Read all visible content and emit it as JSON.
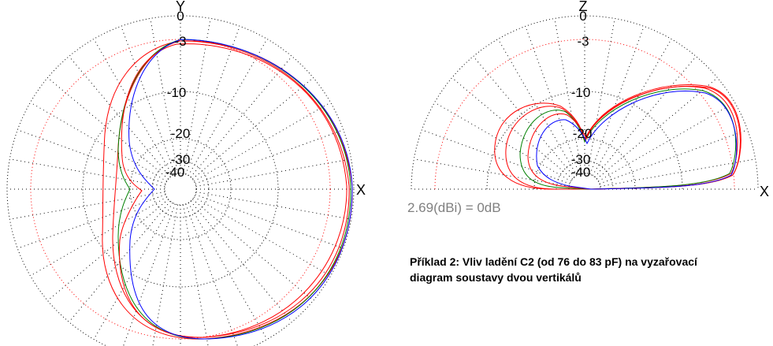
{
  "colors": {
    "grid": "#000000",
    "grid_ref": "#ff0000",
    "series": [
      "#ff0000",
      "#ff0000",
      "#008000",
      "#ff0000",
      "#0000ff"
    ],
    "gain_text": "#808080"
  },
  "chart_data": [
    {
      "type": "polar-line",
      "view": "azimuth",
      "axis_labels": {
        "top": "Y",
        "right": "X"
      },
      "ring_labels": [
        "0",
        "-3",
        "-10",
        "-20",
        "-30",
        "-40"
      ],
      "ring_db": [
        0,
        -3,
        -10,
        -20,
        -30,
        -40
      ],
      "rlim_db": [
        -40,
        0
      ],
      "reference_ring_db": -3,
      "spoke_step_deg": 10,
      "series_count": 5
    },
    {
      "type": "polar-line",
      "view": "elevation",
      "axis_labels": {
        "top": "Z",
        "right": "X"
      },
      "ring_labels": [
        "0",
        "-3",
        "-10",
        "-20",
        "-30",
        "-40"
      ],
      "ring_db": [
        0,
        -3,
        -10,
        -20,
        -30,
        -40
      ],
      "rlim_db": [
        -40,
        0
      ],
      "reference_ring_db": -3,
      "spoke_step_deg": 10,
      "series_count": 5
    }
  ],
  "gain_reference": "2.69(dBi) = 0dB",
  "caption": {
    "line1": "Příklad 2: Vliv ladění C2 (od 76 do 83 pF) na vyzařovací",
    "line2": "diagram soustavy dvou vertikálů"
  }
}
